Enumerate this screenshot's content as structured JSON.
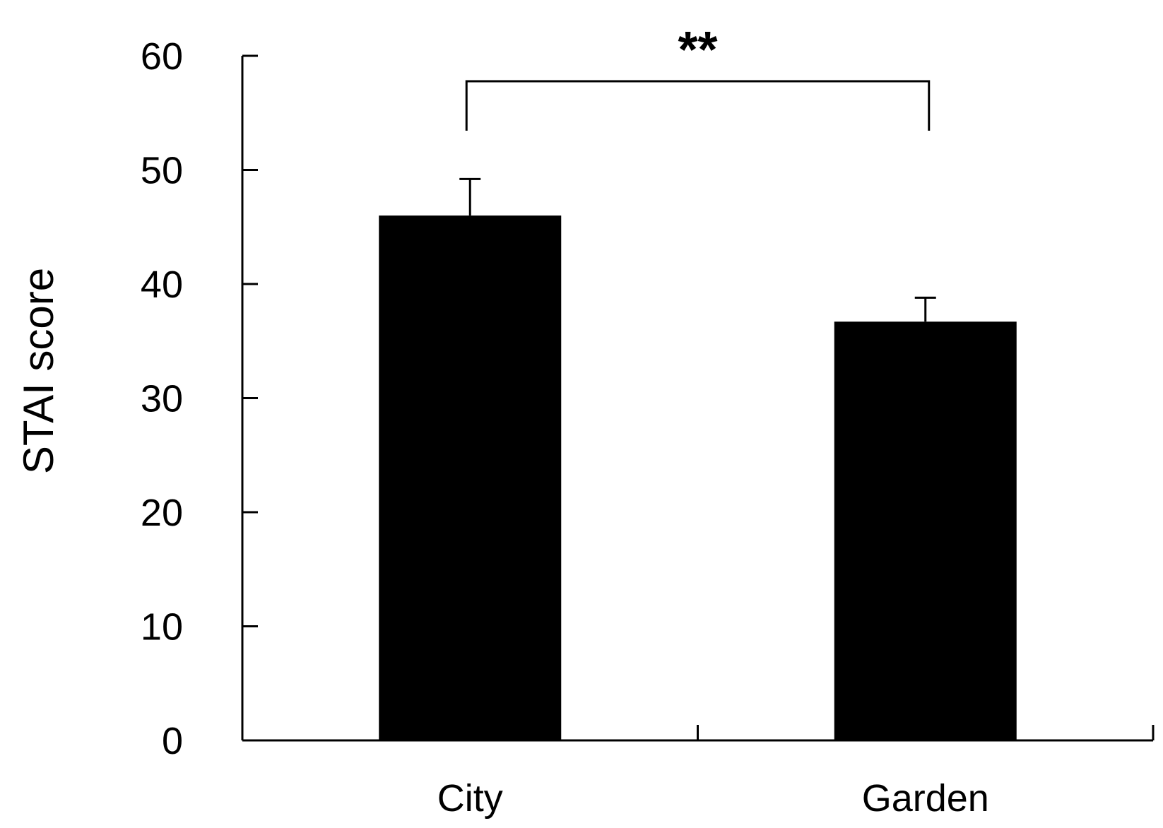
{
  "chart_data": {
    "type": "bar",
    "categories": [
      "City",
      "Garden"
    ],
    "values": [
      46.0,
      36.7
    ],
    "errors": [
      3.2,
      2.1
    ],
    "title": "",
    "xlabel": "",
    "ylabel": "STAI score",
    "ylim": [
      0,
      60
    ],
    "yticks": [
      0,
      10,
      20,
      30,
      40,
      50,
      60
    ],
    "ytick_labels": [
      "0",
      "10",
      "20",
      "30",
      "40",
      "50",
      "60"
    ],
    "significance": {
      "between": [
        "City",
        "Garden"
      ],
      "label": "**"
    },
    "bar_color": "#000000",
    "grid": false
  }
}
